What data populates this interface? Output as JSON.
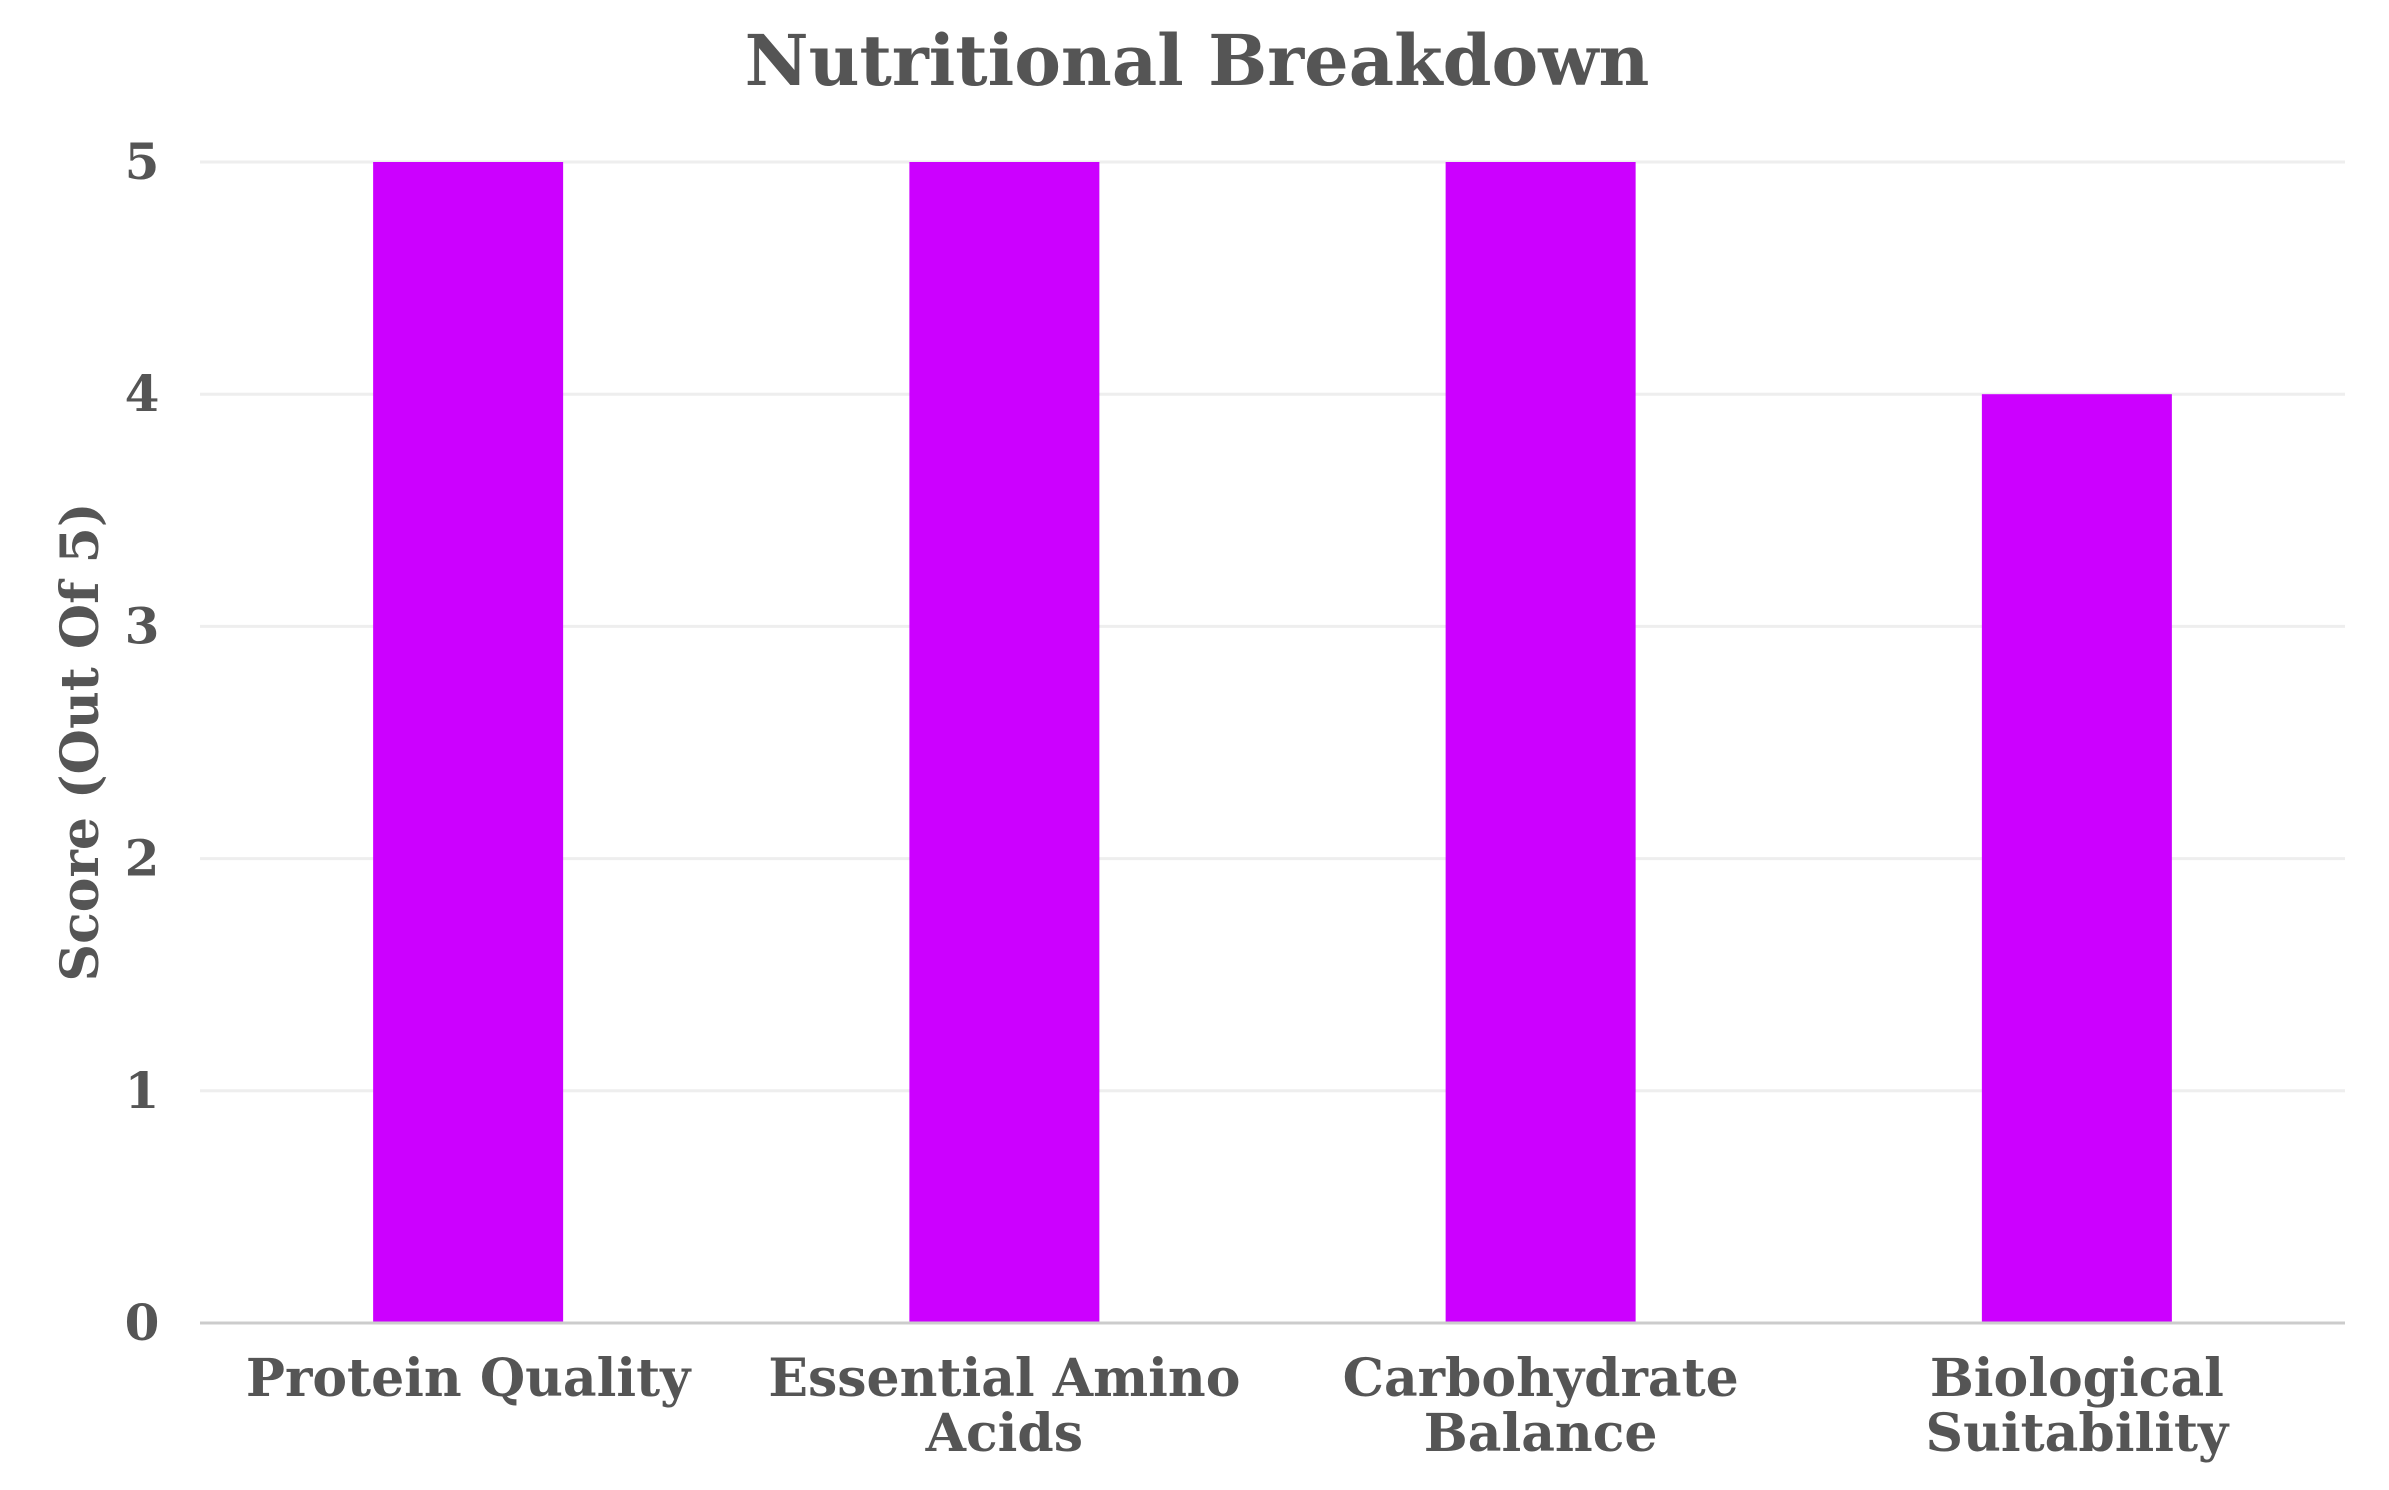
{
  "chart_data": {
    "type": "bar",
    "title": "Nutritional Breakdown",
    "xlabel": "",
    "ylabel": "Score (Out Of 5)",
    "categories": [
      [
        "Protein Quality"
      ],
      [
        "Essential Amino",
        "Acids"
      ],
      [
        "Carbohydrate",
        "Balance"
      ],
      [
        "Biological",
        "Suitability"
      ]
    ],
    "values": [
      5,
      5,
      5,
      4
    ],
    "ylim": [
      0,
      5
    ],
    "yticks": [
      "0",
      "1",
      "2",
      "3",
      "4",
      "5"
    ],
    "grid": true,
    "legend": "none",
    "colors": {
      "bar": "#cc00ff",
      "text": "#555555",
      "grid": "#eeeeee",
      "axis": "#cccccc"
    }
  }
}
